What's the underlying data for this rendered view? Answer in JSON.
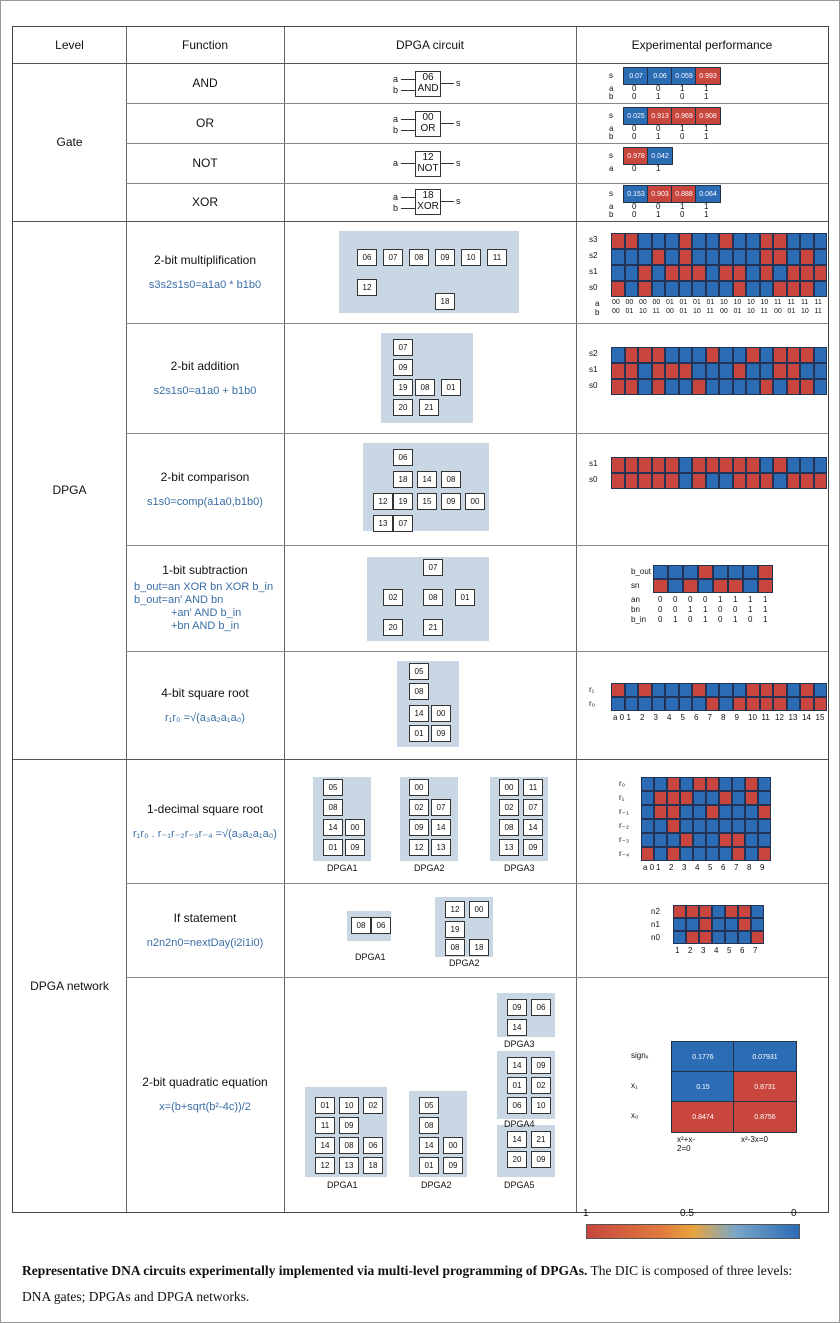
{
  "header": {
    "level": "Level",
    "function": "Function",
    "circuit": "DPGA circuit",
    "performance": "Experimental performance"
  },
  "levels": {
    "gate": "Gate",
    "dpga": "DPGA",
    "network": "DPGA network"
  },
  "gates": [
    {
      "name": "AND",
      "code": "06",
      "op": "AND",
      "values": [
        "0.07",
        "0.06",
        "0.059",
        "0.993"
      ],
      "a": [
        "0",
        "0",
        "1",
        "1"
      ],
      "b": [
        "0",
        "1",
        "0",
        "1"
      ]
    },
    {
      "name": "OR",
      "code": "00",
      "op": "OR",
      "values": [
        "0.025",
        "0.913",
        "0.969",
        "0.908"
      ],
      "a": [
        "0",
        "0",
        "1",
        "1"
      ],
      "b": [
        "0",
        "1",
        "0",
        "1"
      ]
    },
    {
      "name": "NOT",
      "code": "12",
      "op": "NOT",
      "values": [
        "0.978",
        "0.042"
      ],
      "a": [
        "0",
        "1"
      ],
      "b": []
    },
    {
      "name": "XOR",
      "code": "18",
      "op": "XOR",
      "values": [
        "0.153",
        "0.903",
        "0.888",
        "0.064"
      ],
      "a": [
        "0",
        "0",
        "1",
        "1"
      ],
      "b": [
        "0",
        "1",
        "0",
        "1"
      ]
    }
  ],
  "gate_labels": {
    "in_a": "a",
    "in_b": "b",
    "out": "s"
  },
  "dpga_functions": [
    {
      "title": "2-bit multiplification",
      "formula": "s3s2s1s0=a1a0 * b1b0"
    },
    {
      "title": "2-bit addition",
      "formula": "s2s1s0=a1a0 + b1b0"
    },
    {
      "title": "2-bit comparison",
      "formula": "s1s0=comp(a1a0,b1b0)"
    },
    {
      "title": "1-bit subtraction",
      "formula1": "b_out=an XOR bn XOR b_in",
      "formula2": "b_out=an' AND bn",
      "formula3": "+an' AND b_in",
      "formula4": "+bn AND b_in"
    },
    {
      "title": "4-bit square root",
      "formula": "r₁r₀ =√(a₃a₂a₁a₀)"
    }
  ],
  "network_functions": [
    {
      "title": "1-decimal square root",
      "formula": "r₁r₀ . r₋₁r₋₂r₋₃r₋₄ =√(a₃a₂a₁a₀)"
    },
    {
      "title": "If statement",
      "formula": "n2n2n0=nextDay(i2i1i0)"
    },
    {
      "title": "2-bit quadratic equation",
      "formula": "x=(b+sqrt(b²-4c))/2"
    }
  ],
  "mult": {
    "a": [
      "00",
      "00",
      "00",
      "00",
      "01",
      "01",
      "01",
      "01",
      "10",
      "10",
      "10",
      "10",
      "11",
      "11",
      "11",
      "11"
    ],
    "b": [
      "00",
      "01",
      "10",
      "11",
      "00",
      "01",
      "10",
      "11",
      "00",
      "01",
      "10",
      "11",
      "00",
      "01",
      "10",
      "11"
    ],
    "rows": [
      "s3",
      "s2",
      "s1",
      "s0"
    ]
  },
  "add": {
    "rows": [
      "s2",
      "s1",
      "s0"
    ]
  },
  "comp": {
    "rows": [
      "s1",
      "s0"
    ]
  },
  "sub": {
    "rows": [
      "b_out",
      "sn"
    ],
    "an": [
      "0",
      "0",
      "0",
      "0",
      "1",
      "1",
      "1",
      "1"
    ],
    "bn": [
      "0",
      "0",
      "1",
      "1",
      "0",
      "0",
      "1",
      "1"
    ],
    "b_in": [
      "0",
      "1",
      "0",
      "1",
      "0",
      "1",
      "0",
      "1"
    ]
  },
  "sqrt4": {
    "x": [
      "a 0",
      "1",
      "2",
      "3",
      "4",
      "5",
      "6",
      "7",
      "8",
      "9",
      "10",
      "11",
      "12",
      "13",
      "14",
      "15"
    ]
  },
  "sqrt_dec": {
    "x": [
      "a 0",
      "1",
      "2",
      "3",
      "4",
      "5",
      "6",
      "7",
      "8",
      "9"
    ],
    "names": [
      "DPGA1",
      "DPGA2",
      "DPGA3"
    ]
  },
  "ifs": {
    "rows": [
      "n2",
      "n1",
      "n0"
    ],
    "x": [
      "1",
      "2",
      "3",
      "4",
      "5",
      "6",
      "7"
    ],
    "names": [
      "DPGA1",
      "DPGA2"
    ]
  },
  "quad": {
    "rows": [
      "signₓ",
      "x₁",
      "x₀"
    ],
    "cols": [
      "x²+x-2=0",
      "x²-3x=0"
    ],
    "values": [
      [
        "0.1776",
        "0.07931"
      ],
      [
        "0.15",
        "0.8731"
      ],
      [
        "0.8474",
        "0.8756"
      ]
    ],
    "names": [
      "DPGA1",
      "DPGA2",
      "DPGA3",
      "DPGA4",
      "DPGA5"
    ]
  },
  "colorbar": {
    "left": "1",
    "mid": "0.5",
    "right": "0"
  },
  "caption": {
    "bold": "Representative DNA circuits experimentally implemented via multi-level programming of DPGAs.",
    "rest": " The DIC is composed of three levels: DNA gates; DPGAs and DPGA networks."
  },
  "colors": {
    "high": "#c8463e",
    "low": "#2b6cb5",
    "mid": "#e8a43c",
    "panel": "#c9d7e4"
  }
}
